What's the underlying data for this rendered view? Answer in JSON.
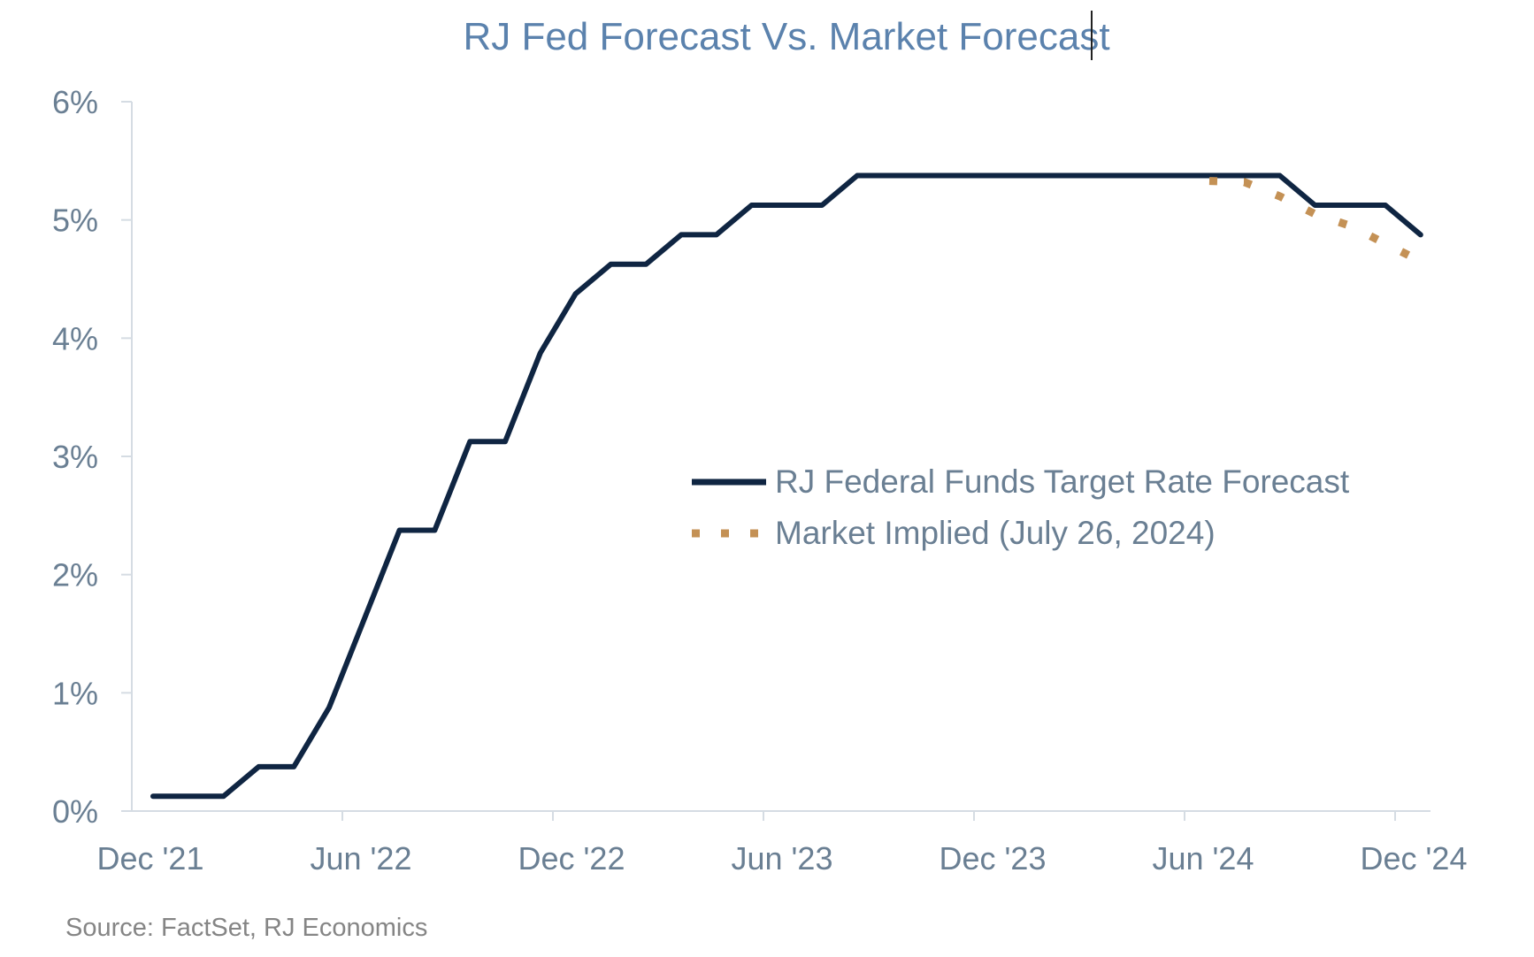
{
  "chart_data": {
    "type": "line",
    "title": "RJ Fed Forecast Vs. Market Forecast",
    "source": "Source: FactSet, RJ Economics",
    "x_tick_labels": [
      "Dec '21",
      "Jun '22",
      "Dec '22",
      "Jun '23",
      "Dec '23",
      "Jun '24",
      "Dec '24"
    ],
    "y_tick_labels": [
      "0%",
      "1%",
      "2%",
      "3%",
      "4%",
      "5%",
      "6%"
    ],
    "xlim": [
      "2021-12",
      "2024-12"
    ],
    "ylim": [
      0,
      6
    ],
    "x_axis_type": "monthly dates",
    "y_unit": "%",
    "grid": false,
    "legend_position": "center-right",
    "series": [
      {
        "name": "RJ Federal Funds Target Rate Forecast",
        "color": "#0f2542",
        "style": "solid",
        "points": [
          [
            "2021-12",
            0.125
          ],
          [
            "2022-01",
            0.125
          ],
          [
            "2022-02",
            0.125
          ],
          [
            "2022-03",
            0.375
          ],
          [
            "2022-04",
            0.375
          ],
          [
            "2022-05",
            0.875
          ],
          [
            "2022-06",
            1.625
          ],
          [
            "2022-07",
            2.375
          ],
          [
            "2022-08",
            2.375
          ],
          [
            "2022-09",
            3.125
          ],
          [
            "2022-10",
            3.125
          ],
          [
            "2022-11",
            3.875
          ],
          [
            "2022-12",
            4.375
          ],
          [
            "2023-01",
            4.625
          ],
          [
            "2023-02",
            4.625
          ],
          [
            "2023-03",
            4.875
          ],
          [
            "2023-04",
            4.875
          ],
          [
            "2023-05",
            5.125
          ],
          [
            "2023-06",
            5.125
          ],
          [
            "2023-07",
            5.125
          ],
          [
            "2023-08",
            5.375
          ],
          [
            "2023-09",
            5.375
          ],
          [
            "2023-10",
            5.375
          ],
          [
            "2023-11",
            5.375
          ],
          [
            "2023-12",
            5.375
          ],
          [
            "2024-01",
            5.375
          ],
          [
            "2024-02",
            5.375
          ],
          [
            "2024-03",
            5.375
          ],
          [
            "2024-04",
            5.375
          ],
          [
            "2024-05",
            5.375
          ],
          [
            "2024-06",
            5.375
          ],
          [
            "2024-07",
            5.375
          ],
          [
            "2024-08",
            5.375
          ],
          [
            "2024-09",
            5.125
          ],
          [
            "2024-10",
            5.125
          ],
          [
            "2024-11",
            5.125
          ],
          [
            "2024-12",
            4.875
          ]
        ]
      },
      {
        "name": "Market Implied (July 26, 2024)",
        "color": "#c49155",
        "style": "dotted",
        "points": [
          [
            "2024-06",
            5.33
          ],
          [
            "2024-07",
            5.32
          ],
          [
            "2024-08",
            5.2
          ],
          [
            "2024-09",
            5.05
          ],
          [
            "2024-10",
            4.95
          ],
          [
            "2024-11",
            4.8
          ],
          [
            "2024-12",
            4.65
          ]
        ]
      }
    ]
  },
  "colors": {
    "title": "#5b82ad",
    "axis_text": "#6a7f93",
    "axis_line": "#d5dce3",
    "source_text": "#858585"
  }
}
